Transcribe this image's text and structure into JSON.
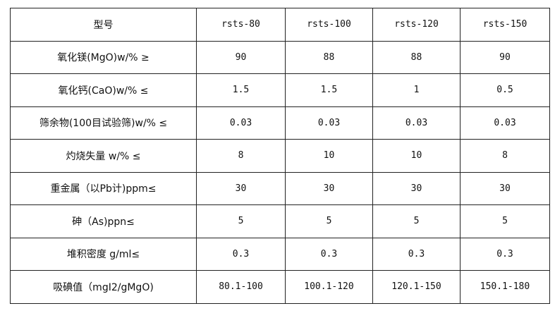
{
  "table": {
    "header": [
      "型号",
      "rsts-80",
      "rsts-100",
      "rsts-120",
      "rsts-150"
    ],
    "rows": [
      [
        "氧化镁(MgO)w/% ≥",
        "90",
        "88",
        "88",
        "90"
      ],
      [
        "氧化钙(CaO)w/% ≤",
        "1.5",
        "1.5",
        "1",
        "0.5"
      ],
      [
        "筛余物(100目试验筛)w/% ≤",
        "0.03",
        "0.03",
        "0.03",
        "0.03"
      ],
      [
        "灼烧失量 w/% ≤",
        "8",
        "10",
        "10",
        "8"
      ],
      [
        "重金属（以Pb计)ppm≤",
        "30",
        "30",
        "30",
        "30"
      ],
      [
        "砷（As)ppn≤",
        "5",
        "5",
        "5",
        "5"
      ],
      [
        "堆积密度 g/ml≤",
        "0.3",
        "0.3",
        "0.3",
        "0.3"
      ],
      [
        "吸碘值（mgI2/gMgO)",
        "80.1-100",
        "100.1-120",
        "120.1-150",
        "150.1-180"
      ]
    ]
  }
}
